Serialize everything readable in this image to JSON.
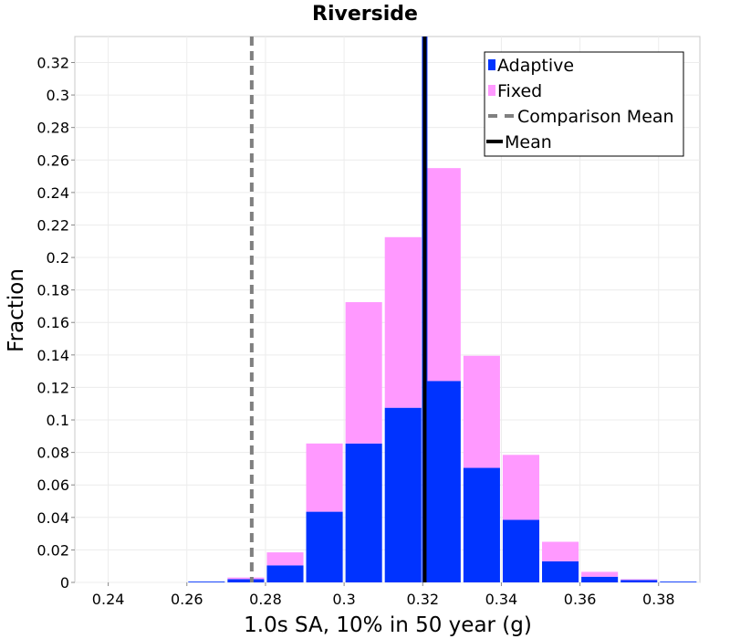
{
  "chart_data": {
    "type": "bar",
    "stacked": true,
    "title": "Riverside",
    "xlabel": "1.0s SA, 10% in 50 year (g)",
    "ylabel": "Fraction",
    "xlim": [
      0.2315,
      0.3905
    ],
    "ylim": [
      0,
      0.336
    ],
    "xticks": [
      "0.24",
      "0.26",
      "0.28",
      "0.3",
      "0.32",
      "0.34",
      "0.36",
      "0.38"
    ],
    "yticks": [
      "0",
      "0.02",
      "0.04",
      "0.06",
      "0.08",
      "0.1",
      "0.12",
      "0.14",
      "0.16",
      "0.18",
      "0.2",
      "0.22",
      "0.24",
      "0.26",
      "0.28",
      "0.3",
      "0.32"
    ],
    "bin_width": 0.01,
    "bin_centers": [
      0.235,
      0.245,
      0.255,
      0.265,
      0.275,
      0.285,
      0.295,
      0.305,
      0.315,
      0.325,
      0.335,
      0.345,
      0.355,
      0.365,
      0.375,
      0.385
    ],
    "series": [
      {
        "name": "Adaptive",
        "color": "#0033ff",
        "values": [
          0,
          0,
          0,
          0.0005,
          0.002,
          0.0105,
          0.0435,
          0.0855,
          0.1075,
          0.124,
          0.0705,
          0.0385,
          0.013,
          0.0035,
          0.0015,
          0.0005
        ]
      },
      {
        "name": "Fixed",
        "color": "#ff99ff",
        "values": [
          0,
          0,
          0,
          0,
          0.001,
          0.008,
          0.042,
          0.087,
          0.105,
          0.131,
          0.069,
          0.04,
          0.012,
          0.003,
          0.0005,
          0
        ]
      }
    ],
    "vlines": [
      {
        "name": "Comparison Mean",
        "x": 0.2765,
        "color": "#808080",
        "style": "dashed"
      },
      {
        "name": "Mean",
        "x": 0.3205,
        "color": "#000000",
        "style": "solid"
      }
    ],
    "legend": {
      "position": "top-right",
      "items": [
        {
          "label": "Adaptive",
          "swatch": "bar",
          "color": "#0033ff"
        },
        {
          "label": "Fixed",
          "swatch": "bar",
          "color": "#ff99ff"
        },
        {
          "label": "Comparison Mean",
          "swatch": "dashed-line",
          "color": "#808080"
        },
        {
          "label": "Mean",
          "swatch": "solid-line",
          "color": "#000000"
        }
      ]
    },
    "grid": true
  }
}
